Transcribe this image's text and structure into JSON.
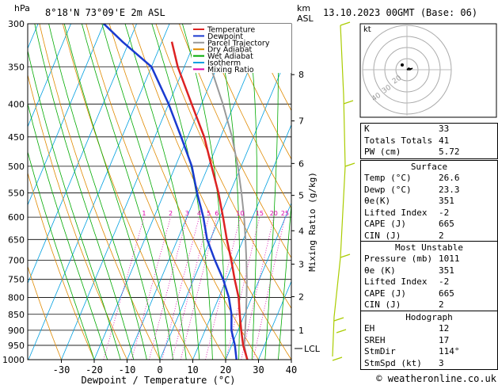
{
  "header": {
    "location": "8°18'N 73°09'E 2m ASL",
    "datetime": "13.10.2023 00GMT (Base: 06)",
    "hpa_label": "hPa",
    "km_label": "km",
    "asl_label": "ASL"
  },
  "chart_data": {
    "type": "skew-t",
    "xlabel": "Dewpoint / Temperature (°C)",
    "ylabel_right": "Mixing Ratio (g/kg)",
    "x_ticks": [
      -30,
      -20,
      -10,
      0,
      10,
      20,
      30,
      40
    ],
    "pressure_ticks": [
      300,
      350,
      400,
      450,
      500,
      550,
      600,
      650,
      700,
      750,
      800,
      850,
      900,
      950,
      1000
    ],
    "km_ticks": [
      {
        "label": "1",
        "p": 900
      },
      {
        "label": "2",
        "p": 798
      },
      {
        "label": "3",
        "p": 710
      },
      {
        "label": "4",
        "p": 630
      },
      {
        "label": "5",
        "p": 555
      },
      {
        "label": "6",
        "p": 495
      },
      {
        "label": "7",
        "p": 425
      },
      {
        "label": "8",
        "p": 360
      }
    ],
    "lcl_label": "LCL",
    "lcl_p": 950,
    "mixing_ratio_labels": [
      "1",
      "2",
      "3",
      "4",
      "5",
      "6",
      "10",
      "15",
      "20",
      "25"
    ],
    "mixing_ratio_values": [
      1,
      2,
      3,
      4,
      5,
      6,
      10,
      15,
      20,
      25
    ],
    "legend": [
      {
        "name": "Temperature",
        "color": "#dd2222"
      },
      {
        "name": "Dewpoint",
        "color": "#1a3ad0"
      },
      {
        "name": "Parcel Trajectory",
        "color": "#999999"
      },
      {
        "name": "Dry Adiabat",
        "color": "#e08a00"
      },
      {
        "name": "Wet Adiabat",
        "color": "#00aa00"
      },
      {
        "name": "Isotherm",
        "color": "#00a0e0"
      },
      {
        "name": "Mixing Ratio",
        "color": "#dd00aa"
      }
    ],
    "temperature": {
      "p": [
        1000,
        950,
        900,
        850,
        800,
        750,
        700,
        650,
        600,
        550,
        500,
        450,
        400,
        350,
        320
      ],
      "t": [
        26.6,
        23.5,
        21,
        18.5,
        16,
        12.5,
        9,
        5,
        1,
        -3.5,
        -9,
        -15,
        -23,
        -32,
        -37
      ]
    },
    "dewpoint": {
      "p": [
        1000,
        950,
        900,
        850,
        800,
        750,
        700,
        650,
        600,
        550,
        500,
        450,
        400,
        350,
        320,
        300
      ],
      "t": [
        23.3,
        21,
        18,
        16,
        13,
        9,
        4,
        -1,
        -5,
        -10,
        -15,
        -22,
        -30,
        -40,
        -52,
        -60
      ]
    },
    "parcel": {
      "p": [
        1000,
        950,
        900,
        850,
        800,
        750,
        700,
        650,
        600,
        550,
        500,
        450,
        400,
        350
      ],
      "t": [
        26.6,
        23.8,
        22.2,
        20.4,
        18.4,
        16.2,
        13.6,
        10.7,
        7.4,
        3.5,
        -1,
        -6.5,
        -13.5,
        -22
      ]
    }
  },
  "hodograph": {
    "unit_label": "kt",
    "ring_labels": [
      "40",
      "30",
      "20"
    ]
  },
  "indices": [
    {
      "label": "K",
      "value": "33"
    },
    {
      "label": "Totals Totals",
      "value": "41"
    },
    {
      "label": "PW (cm)",
      "value": "5.72"
    }
  ],
  "surface": {
    "title": "Surface",
    "rows": [
      {
        "label": "Temp (°C)",
        "value": "26.6"
      },
      {
        "label": "Dewp (°C)",
        "value": "23.3"
      },
      {
        "label": "θe(K)",
        "value": "351"
      },
      {
        "label": "Lifted Index",
        "value": "-2"
      },
      {
        "label": "CAPE (J)",
        "value": "665"
      },
      {
        "label": "CIN (J)",
        "value": "2"
      }
    ]
  },
  "most_unstable": {
    "title": "Most Unstable",
    "rows": [
      {
        "label": "Pressure (mb)",
        "value": "1011"
      },
      {
        "label": "θe (K)",
        "value": "351"
      },
      {
        "label": "Lifted Index",
        "value": "-2"
      },
      {
        "label": "CAPE (J)",
        "value": "665"
      },
      {
        "label": "CIN (J)",
        "value": "2"
      }
    ]
  },
  "hodograph_table": {
    "title": "Hodograph",
    "rows": [
      {
        "label": "EH",
        "value": "12"
      },
      {
        "label": "SREH",
        "value": "17"
      },
      {
        "label": "StmDir",
        "value": "114°"
      },
      {
        "label": "StmSpd (kt)",
        "value": "3"
      }
    ]
  },
  "footer": {
    "copyright": "© weatheronline.co.uk"
  }
}
